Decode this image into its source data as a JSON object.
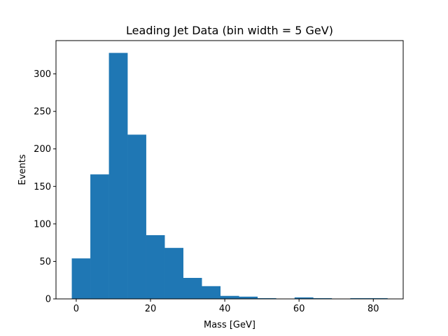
{
  "chart_data": {
    "type": "bar",
    "title": "Leading Jet Data (bin width = 5 GeV)",
    "xlabel": "Mass [GeV]",
    "ylabel": "Events",
    "bin_edges": [
      -1.2,
      3.8,
      8.8,
      13.8,
      18.8,
      23.8,
      28.8,
      33.8,
      38.8,
      43.8,
      48.8,
      53.8,
      58.8,
      63.8,
      68.8,
      73.8,
      78.8,
      83.8
    ],
    "values": [
      54,
      166,
      328,
      219,
      85,
      68,
      28,
      17,
      4,
      3,
      1,
      0,
      2,
      1,
      0,
      1,
      1
    ],
    "xlim": [
      -5.45,
      88.05
    ],
    "ylim": [
      0,
      344.4
    ],
    "xticks": [
      0,
      20,
      40,
      60,
      80
    ],
    "yticks": [
      0,
      50,
      100,
      150,
      200,
      250,
      300
    ],
    "bar_color": "#1f77b4",
    "grid": false,
    "legend": "none"
  }
}
